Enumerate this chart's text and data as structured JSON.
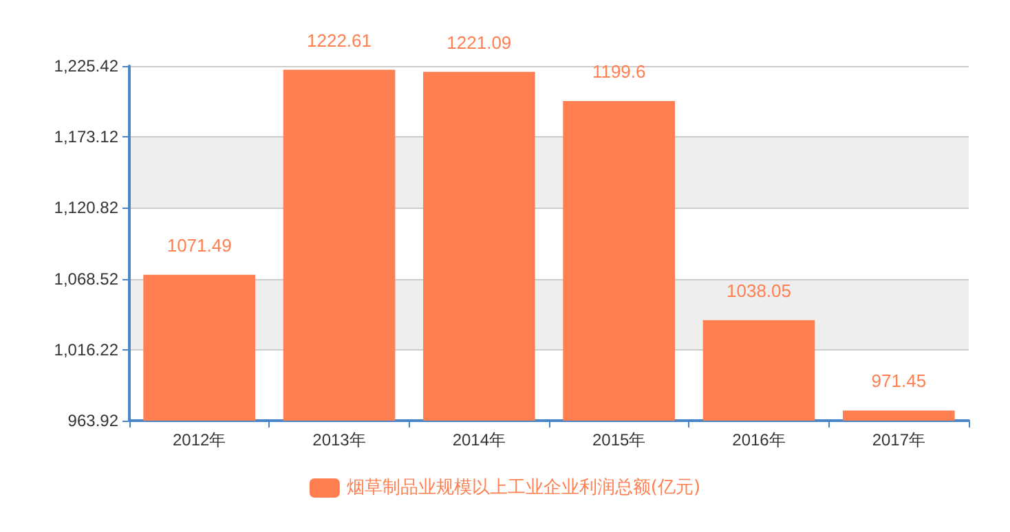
{
  "chart_data": {
    "type": "bar",
    "categories": [
      "2012年",
      "2013年",
      "2014年",
      "2015年",
      "2016年",
      "2017年"
    ],
    "series": [
      {
        "name": "烟草制品业规模以上工业企业利润总额(亿元)",
        "color": "#ff7f50",
        "values": [
          1071.49,
          1222.61,
          1221.09,
          1199.6,
          1038.05,
          971.45
        ]
      }
    ],
    "ylim": [
      963.92,
      1225.42
    ],
    "yticks": [
      {
        "value": 963.92,
        "label": "963.92"
      },
      {
        "value": 1016.22,
        "label": "1,016.22"
      },
      {
        "value": 1068.52,
        "label": "1,068.52"
      },
      {
        "value": 1120.82,
        "label": "1,120.82"
      },
      {
        "value": 1173.12,
        "label": "1,173.12"
      },
      {
        "value": 1225.42,
        "label": "1,225.42"
      }
    ],
    "grid": "y",
    "legend": "bottom",
    "data_labels": true
  }
}
